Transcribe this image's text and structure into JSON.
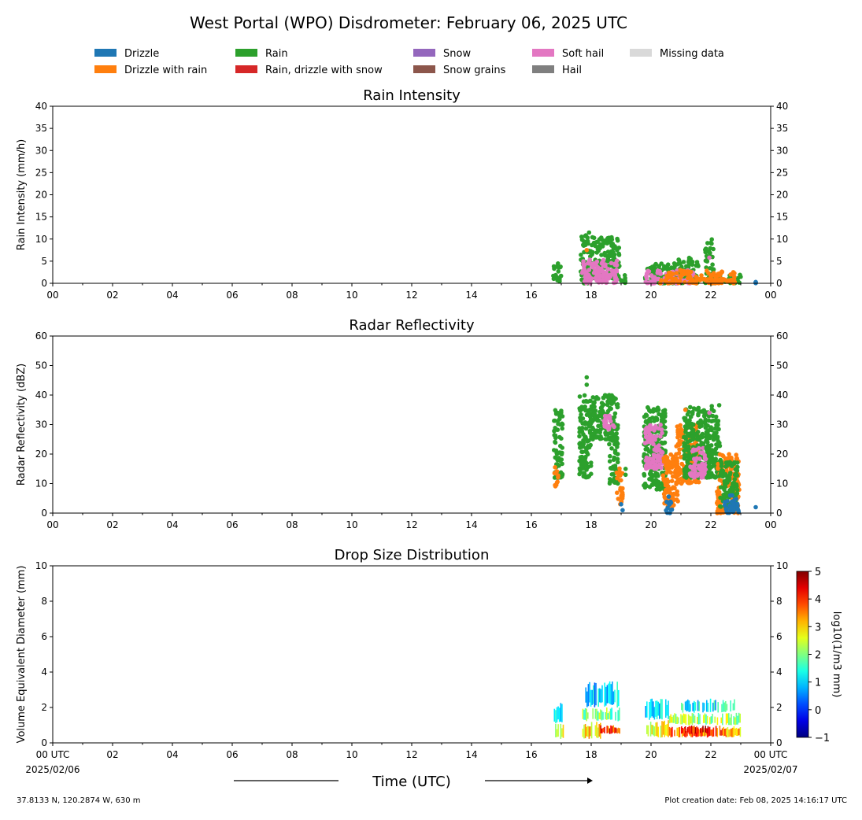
{
  "title": "West Portal (WPO) Disdrometer: February 06, 2025 UTC",
  "legend": [
    {
      "label": "Drizzle",
      "color": "#1f77b4"
    },
    {
      "label": "Drizzle with rain",
      "color": "#ff7f0e"
    },
    {
      "label": "Rain",
      "color": "#2ca02c"
    },
    {
      "label": "Rain, drizzle with snow",
      "color": "#d62728"
    },
    {
      "label": "Snow",
      "color": "#9467bd"
    },
    {
      "label": "Snow grains",
      "color": "#8c564b"
    },
    {
      "label": "Soft hail",
      "color": "#e377c2"
    },
    {
      "label": "Hail",
      "color": "#7f7f7f"
    },
    {
      "label": "Missing data",
      "color": "#d9d9d9"
    }
  ],
  "x_tick_labels": [
    "00",
    "02",
    "04",
    "06",
    "08",
    "10",
    "12",
    "14",
    "16",
    "18",
    "20",
    "22",
    "00"
  ],
  "x_tick_labels_bottom": [
    "00 UTC",
    "02",
    "04",
    "06",
    "08",
    "10",
    "12",
    "14",
    "16",
    "18",
    "20",
    "22",
    "00 UTC"
  ],
  "date_start": "2025/02/06",
  "date_end": "2025/02/07",
  "xlabel": "Time (UTC)",
  "footer_left": "37.8133 N, 120.2874 W, 630 m",
  "footer_right": "Plot creation date: Feb 08, 2025 14:16:17 UTC",
  "colorbar": {
    "label": "log10(1/m3 mm)",
    "range": [
      -1,
      5
    ],
    "ticks": [
      "−1",
      "0",
      "1",
      "2",
      "3",
      "4",
      "5"
    ]
  },
  "chart_data": [
    {
      "type": "scatter",
      "title": "Rain Intensity",
      "ylabel": "Rain Intensity (mm/h)",
      "xlim": [
        0,
        24
      ],
      "ylim": [
        0,
        40
      ],
      "y_ticks": [
        0,
        5,
        10,
        15,
        20,
        25,
        30,
        35,
        40
      ],
      "clusters": [
        {
          "x": [
            16.7,
            17.0
          ],
          "y": [
            0,
            4.5
          ],
          "category": "Rain"
        },
        {
          "x": [
            17.65,
            18.0
          ],
          "y": [
            0,
            11.5
          ],
          "category": "Rain"
        },
        {
          "x": [
            18.0,
            18.95
          ],
          "y": [
            1,
            10.5
          ],
          "category": "Rain"
        },
        {
          "x": [
            18.95,
            19.2
          ],
          "y": [
            0,
            2
          ],
          "category": "Rain"
        },
        {
          "x": [
            19.8,
            20.9
          ],
          "y": [
            0,
            4.5
          ],
          "category": "Rain"
        },
        {
          "x": [
            20.9,
            21.6
          ],
          "y": [
            0,
            6
          ],
          "category": "Rain"
        },
        {
          "x": [
            21.8,
            22.1
          ],
          "y": [
            0,
            10.5
          ],
          "category": "Rain"
        },
        {
          "x": [
            22.1,
            23.0
          ],
          "y": [
            0,
            2
          ],
          "category": "Rain"
        },
        {
          "x": [
            17.7,
            18.9
          ],
          "y": [
            0,
            5.5
          ],
          "category": "Soft hail"
        },
        {
          "x": [
            19.8,
            21.5
          ],
          "y": [
            0,
            3
          ],
          "category": "Soft hail"
        },
        {
          "x": [
            20.3,
            22.8
          ],
          "y": [
            0,
            3
          ],
          "category": "Drizzle with rain"
        },
        {
          "x": [
            23.5,
            23.5
          ],
          "y": [
            0,
            0.5
          ],
          "category": "Drizzle"
        }
      ],
      "points": [
        {
          "x": 17.85,
          "y": 7.5,
          "category": "Drizzle with rain"
        },
        {
          "x": 21.95,
          "y": 5.8,
          "category": "Soft hail"
        }
      ]
    },
    {
      "type": "scatter",
      "title": "Radar Reflectivity",
      "ylabel": "Radar Reflectivity (dBZ)",
      "xlim": [
        0,
        24
      ],
      "ylim": [
        0,
        60
      ],
      "y_ticks": [
        0,
        10,
        20,
        30,
        40,
        50,
        60
      ],
      "clusters": [
        {
          "x": [
            16.75,
            17.05
          ],
          "y": [
            12,
            35
          ],
          "category": "Rain"
        },
        {
          "x": [
            16.75,
            16.9
          ],
          "y": [
            9,
            16
          ],
          "category": "Drizzle with rain"
        },
        {
          "x": [
            17.6,
            18.0
          ],
          "y": [
            12,
            40
          ],
          "category": "Rain"
        },
        {
          "x": [
            18.0,
            18.9
          ],
          "y": [
            25,
            40
          ],
          "category": "Rain"
        },
        {
          "x": [
            18.6,
            18.9
          ],
          "y": [
            10,
            30
          ],
          "category": "Rain"
        },
        {
          "x": [
            18.4,
            18.8
          ],
          "y": [
            28,
            33
          ],
          "category": "Soft hail"
        },
        {
          "x": [
            18.85,
            19.05
          ],
          "y": [
            3,
            16
          ],
          "category": "Drizzle with rain"
        },
        {
          "x": [
            19.75,
            20.5
          ],
          "y": [
            8,
            36
          ],
          "category": "Rain"
        },
        {
          "x": [
            19.8,
            20.4
          ],
          "y": [
            15,
            30
          ],
          "category": "Soft hail"
        },
        {
          "x": [
            20.4,
            20.9
          ],
          "y": [
            2,
            20
          ],
          "category": "Drizzle with rain"
        },
        {
          "x": [
            20.8,
            21.6
          ],
          "y": [
            10,
            30
          ],
          "category": "Drizzle with rain"
        },
        {
          "x": [
            21.1,
            21.9
          ],
          "y": [
            12,
            36
          ],
          "category": "Rain"
        },
        {
          "x": [
            21.3,
            21.9
          ],
          "y": [
            12,
            22
          ],
          "category": "Soft hail"
        },
        {
          "x": [
            21.85,
            22.3
          ],
          "y": [
            12,
            37
          ],
          "category": "Rain"
        },
        {
          "x": [
            22.2,
            22.95
          ],
          "y": [
            0,
            20
          ],
          "category": "Drizzle with rain"
        },
        {
          "x": [
            22.3,
            22.9
          ],
          "y": [
            2,
            18
          ],
          "category": "Rain"
        },
        {
          "x": [
            20.5,
            20.7
          ],
          "y": [
            0,
            6
          ],
          "category": "Drizzle"
        },
        {
          "x": [
            22.45,
            22.95
          ],
          "y": [
            0,
            6
          ],
          "category": "Drizzle"
        }
      ],
      "points": [
        {
          "x": 17.85,
          "y": 46,
          "category": "Rain"
        },
        {
          "x": 17.85,
          "y": 43.5,
          "category": "Rain"
        },
        {
          "x": 19.05,
          "y": 1,
          "category": "Drizzle"
        },
        {
          "x": 19.0,
          "y": 3,
          "category": "Drizzle"
        },
        {
          "x": 19.15,
          "y": 15,
          "category": "Rain"
        },
        {
          "x": 19.15,
          "y": 13,
          "category": "Rain"
        },
        {
          "x": 21.15,
          "y": 35,
          "category": "Drizzle with rain"
        },
        {
          "x": 21.95,
          "y": 34,
          "category": "Soft hail"
        },
        {
          "x": 23.5,
          "y": 2,
          "category": "Drizzle"
        }
      ]
    },
    {
      "type": "heatmap",
      "title": "Drop Size Distribution",
      "ylabel": "Volume Equivalent Diameter (mm)",
      "xlim": [
        0,
        24
      ],
      "ylim": [
        0,
        10
      ],
      "y_ticks": [
        0,
        2,
        4,
        6,
        8,
        10
      ],
      "colorscale": "jet",
      "zlim": [
        -1,
        5
      ],
      "blocks": [
        {
          "x": [
            16.75,
            17.05
          ],
          "diameter": [
            0.2,
            1.1
          ],
          "log_conc": 2.7
        },
        {
          "x": [
            16.75,
            17.05
          ],
          "diameter": [
            1.1,
            2.3
          ],
          "log_conc": 1.4
        },
        {
          "x": [
            17.7,
            18.3
          ],
          "diameter": [
            0.2,
            1.2
          ],
          "log_conc": 3.0
        },
        {
          "x": [
            18.3,
            18.95
          ],
          "diameter": [
            0.5,
            1.0
          ],
          "log_conc": 4.0
        },
        {
          "x": [
            17.7,
            18.95
          ],
          "diameter": [
            1.2,
            2.0
          ],
          "log_conc": 2.0
        },
        {
          "x": [
            17.8,
            18.9
          ],
          "diameter": [
            2.0,
            3.5
          ],
          "log_conc": 1.0
        },
        {
          "x": [
            19.8,
            20.6
          ],
          "diameter": [
            0.3,
            1.3
          ],
          "log_conc": 2.6
        },
        {
          "x": [
            19.8,
            20.6
          ],
          "diameter": [
            1.3,
            2.5
          ],
          "log_conc": 1.2
        },
        {
          "x": [
            20.6,
            21.9
          ],
          "diameter": [
            0.3,
            0.9
          ],
          "log_conc": 3.6
        },
        {
          "x": [
            21.0,
            21.9
          ],
          "diameter": [
            0.5,
            1.0
          ],
          "log_conc": 4.2
        },
        {
          "x": [
            21.9,
            22.5
          ],
          "diameter": [
            0.3,
            1.0
          ],
          "log_conc": 3.8
        },
        {
          "x": [
            22.5,
            23.0
          ],
          "diameter": [
            0.3,
            1.0
          ],
          "log_conc": 3.2
        },
        {
          "x": [
            20.6,
            23.0
          ],
          "diameter": [
            1.0,
            1.7
          ],
          "log_conc": 2.2
        },
        {
          "x": [
            21.0,
            22.8
          ],
          "diameter": [
            1.7,
            2.5
          ],
          "log_conc": 1.2
        }
      ]
    }
  ]
}
